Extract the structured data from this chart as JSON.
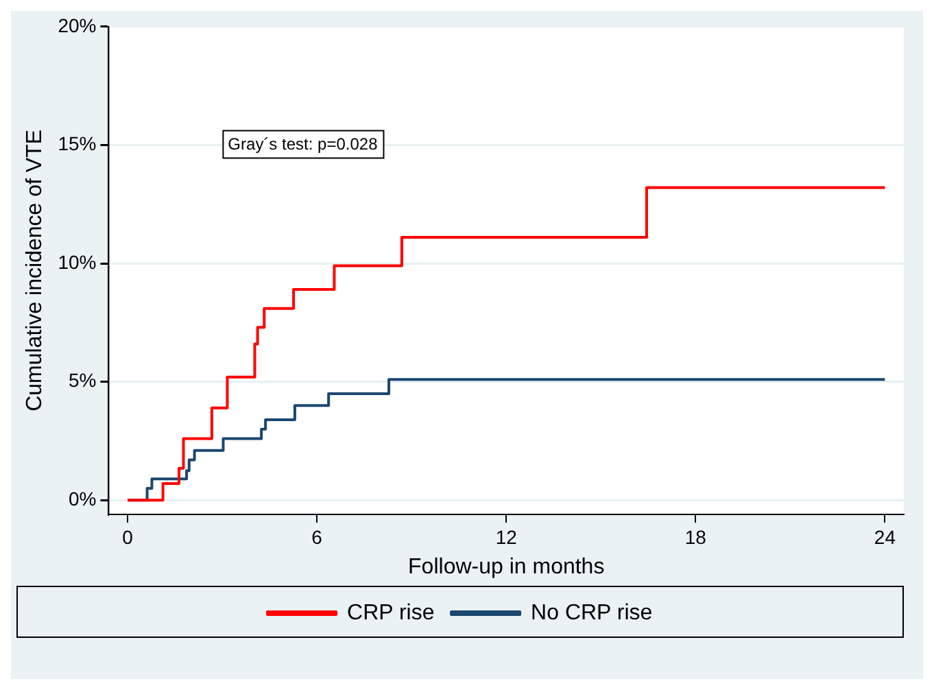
{
  "chart_data": {
    "type": "step",
    "xlabel": "Follow-up in months",
    "ylabel": "Cumulative incidence of VTE",
    "annotations": [
      "Gray´s test: p=0.028"
    ],
    "series": [
      {
        "name": "CRP rise",
        "color": "#ff0000",
        "x": [
          0,
          1.12,
          1.63,
          1.77,
          2.67,
          3.16,
          4.03,
          4.12,
          4.33,
          5.26,
          6.55,
          8.69,
          16.45,
          24
        ],
        "values": [
          0,
          0.7,
          1.35,
          2.6,
          3.9,
          5.2,
          6.6,
          7.3,
          8.1,
          8.9,
          9.9,
          11.1,
          13.2,
          13.2
        ]
      },
      {
        "name": "No CRP rise",
        "color": "#1a476f",
        "x": [
          0,
          0.62,
          0.77,
          1.87,
          1.95,
          2.12,
          3.03,
          4.24,
          4.37,
          5.3,
          6.37,
          8.28,
          24
        ],
        "values": [
          0,
          0.5,
          0.9,
          1.25,
          1.7,
          2.1,
          2.6,
          3.0,
          3.4,
          4.0,
          4.5,
          5.1,
          5.1
        ]
      }
    ],
    "xlim": [
      -0.6,
      24.6
    ],
    "xticks": [
      0,
      6,
      12,
      18,
      24
    ],
    "ylim": [
      -0.6,
      20
    ],
    "yticks": [
      {
        "value": 0,
        "label": "0%"
      },
      {
        "value": 5,
        "label": "5%"
      },
      {
        "value": 10,
        "label": "10%"
      },
      {
        "value": 15,
        "label": "15%"
      },
      {
        "value": 20,
        "label": "20%"
      }
    ],
    "grid": "y",
    "legend": "bottom",
    "line_style": "solid",
    "marker": "none"
  }
}
